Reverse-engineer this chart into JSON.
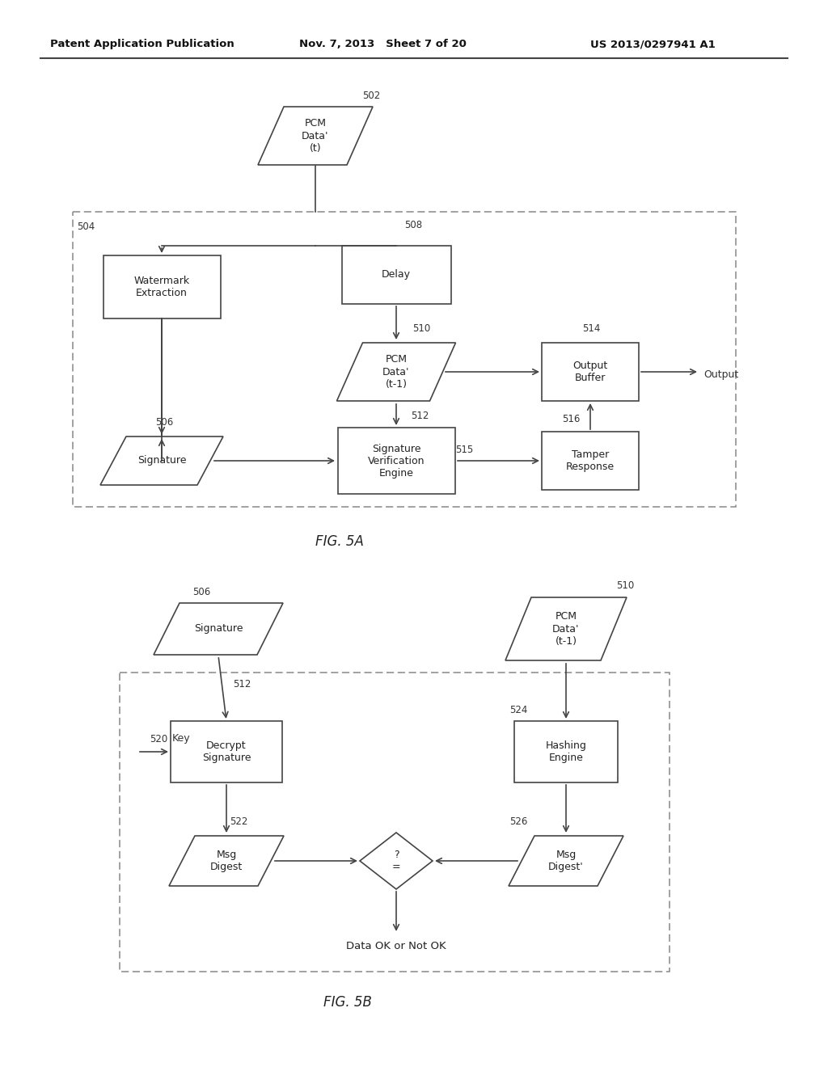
{
  "bg_color": "#ffffff",
  "header_left": "Patent Application Publication",
  "header_mid": "Nov. 7, 2013   Sheet 7 of 20",
  "header_right": "US 2013/0297941 A1",
  "fig5a_label": "FIG. 5A",
  "fig5b_label": "FIG. 5B",
  "line_color": "#444444",
  "box_color": "#ffffff",
  "box_edge": "#444444",
  "dash_color": "#888888"
}
